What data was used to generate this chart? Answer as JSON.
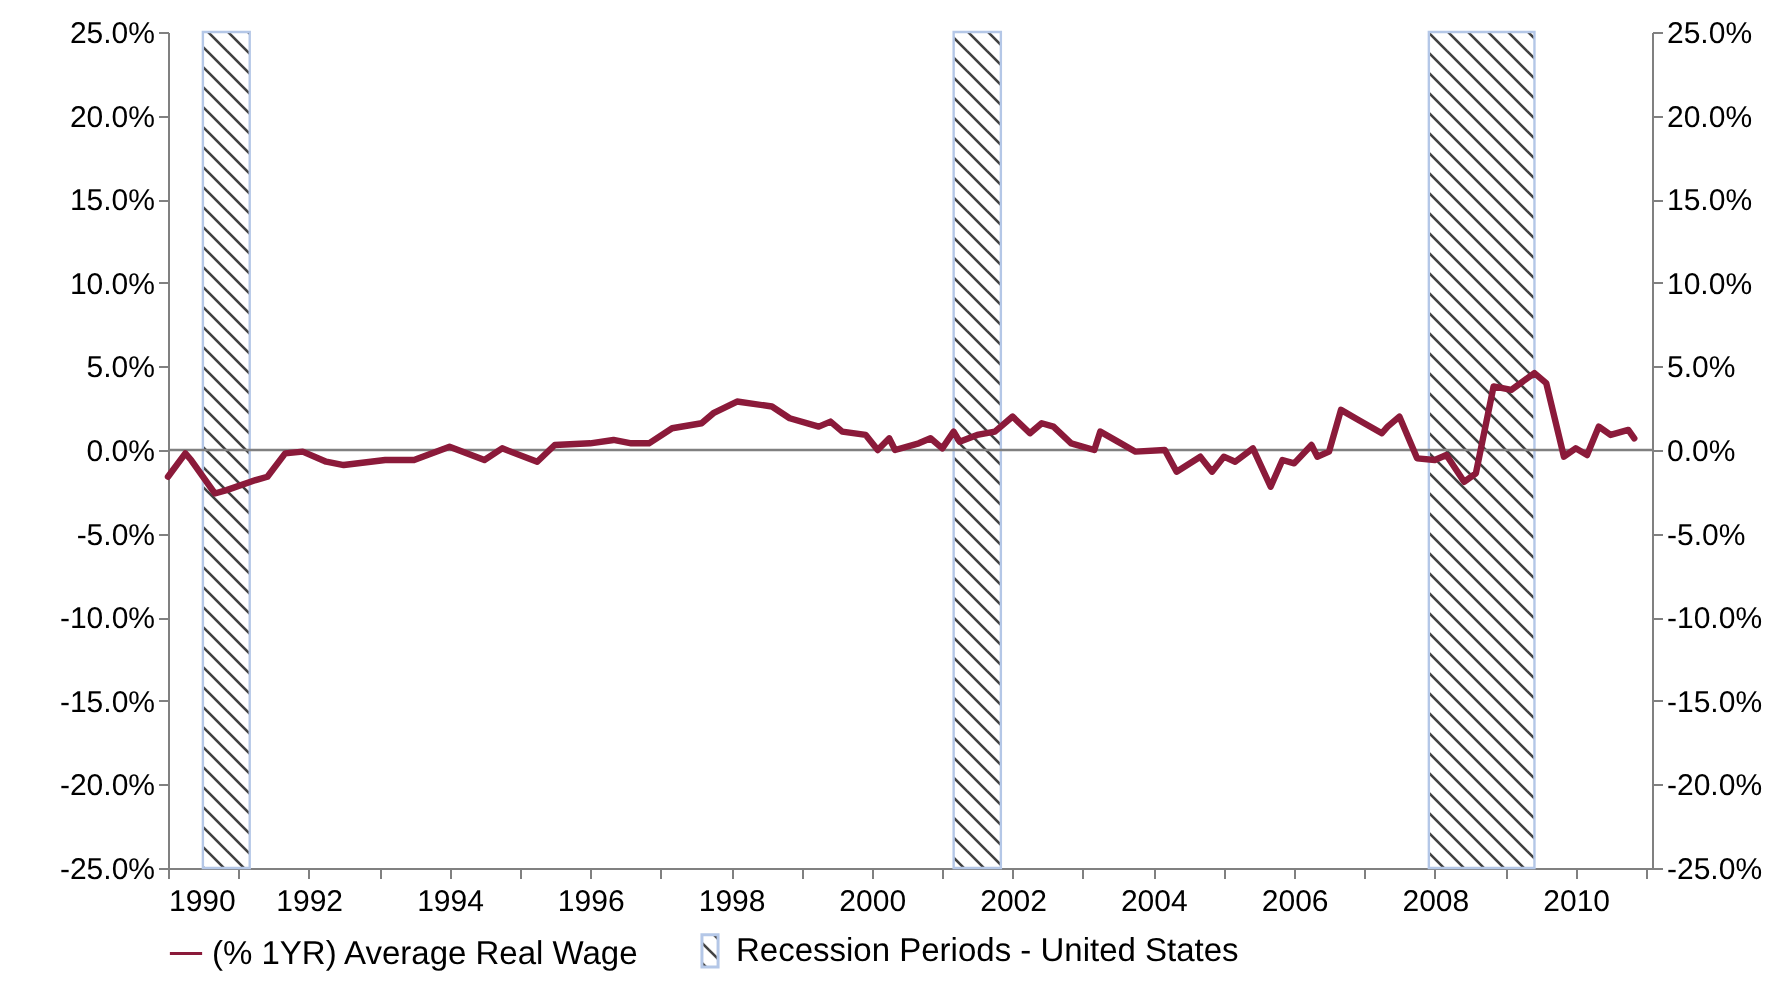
{
  "chart_data": {
    "type": "line",
    "x": [
      "1990-01",
      "1990-04",
      "1990-05",
      "1990-09",
      "1990-11",
      "1991-04",
      "1991-06",
      "1991-09",
      "1991-12",
      "1992-04",
      "1992-07",
      "1993-02",
      "1993-07",
      "1994-01",
      "1994-07",
      "1994-10",
      "1995-04",
      "1995-07",
      "1996-01",
      "1996-05",
      "1996-08",
      "1996-11",
      "1997-03",
      "1997-08",
      "1997-10",
      "1998-02",
      "1998-08",
      "1998-11",
      "1999-04",
      "1999-06",
      "1999-08",
      "1999-12",
      "2000-02",
      "2000-04",
      "2000-05",
      "2000-09",
      "2000-11",
      "2001-01",
      "2001-03",
      "2001-04",
      "2001-07",
      "2001-10",
      "2002-01",
      "2002-04",
      "2002-06",
      "2002-08",
      "2002-11",
      "2003-03",
      "2003-04",
      "2003-07",
      "2003-10",
      "2004-03",
      "2004-05",
      "2004-09",
      "2004-11",
      "2005-01",
      "2005-03",
      "2005-06",
      "2005-09",
      "2005-11",
      "2006-01",
      "2006-04",
      "2006-05",
      "2006-07",
      "2006-09",
      "2006-12",
      "2007-04",
      "2007-05",
      "2007-07",
      "2007-10",
      "2008-01",
      "2008-03",
      "2008-06",
      "2008-08",
      "2008-11",
      "2009-02",
      "2009-06",
      "2009-08",
      "2009-11",
      "2010-01",
      "2010-03",
      "2010-05",
      "2010-07",
      "2010-10",
      "2010-11"
    ],
    "series": [
      {
        "name": "(% 1YR) Average Real Wage",
        "color": "#8b1a3a",
        "values": [
          -1.6,
          -0.2,
          -0.6,
          -2.6,
          -2.4,
          -1.8,
          -1.6,
          -0.2,
          -0.1,
          -0.7,
          -0.9,
          -0.6,
          -0.6,
          0.2,
          -0.6,
          0.1,
          -0.7,
          0.3,
          0.4,
          0.6,
          0.4,
          0.4,
          1.3,
          1.6,
          2.2,
          2.9,
          2.6,
          1.9,
          1.4,
          1.7,
          1.1,
          0.9,
          0.0,
          0.7,
          0.0,
          0.4,
          0.7,
          0.1,
          1.1,
          0.5,
          0.9,
          1.1,
          2.0,
          1.0,
          1.6,
          1.4,
          0.4,
          0.0,
          1.1,
          0.5,
          -0.1,
          0.0,
          -1.3,
          -0.4,
          -1.3,
          -0.4,
          -0.7,
          0.1,
          -2.2,
          -0.6,
          -0.8,
          0.3,
          -0.4,
          -0.1,
          2.4,
          1.8,
          1.0,
          1.4,
          2.0,
          -0.5,
          -0.6,
          -0.3,
          -1.9,
          -1.4,
          3.8,
          3.6,
          4.6,
          4.0,
          -0.4,
          0.1,
          -0.3,
          1.4,
          0.9,
          1.2,
          0.7
        ]
      }
    ],
    "xlim": [
      "1990-01",
      "2011-02"
    ],
    "xticks": [
      {
        "value": "1990",
        "label": "1990"
      },
      {
        "value": "1991",
        "label": null
      },
      {
        "value": "1992",
        "label": "1992"
      },
      {
        "value": "1993",
        "label": null
      },
      {
        "value": "1994",
        "label": "1994"
      },
      {
        "value": "1995",
        "label": null
      },
      {
        "value": "1996",
        "label": "1996"
      },
      {
        "value": "1997",
        "label": null
      },
      {
        "value": "1998",
        "label": "1998"
      },
      {
        "value": "1999",
        "label": null
      },
      {
        "value": "2000",
        "label": "2000"
      },
      {
        "value": "2001",
        "label": null
      },
      {
        "value": "2002",
        "label": "2002"
      },
      {
        "value": "2003",
        "label": null
      },
      {
        "value": "2004",
        "label": "2004"
      },
      {
        "value": "2005",
        "label": null
      },
      {
        "value": "2006",
        "label": "2006"
      },
      {
        "value": "2007",
        "label": null
      },
      {
        "value": "2008",
        "label": "2008"
      },
      {
        "value": "2009",
        "label": null
      },
      {
        "value": "2010",
        "label": "2010"
      },
      {
        "value": "2011",
        "label": null
      }
    ],
    "ylim": [
      -25,
      25
    ],
    "yticks": [
      {
        "value": -25,
        "label": "-25.0%"
      },
      {
        "value": -20,
        "label": "-20.0%"
      },
      {
        "value": -15,
        "label": "-15.0%"
      },
      {
        "value": -10,
        "label": "-10.0%"
      },
      {
        "value": -5,
        "label": "-5.0%"
      },
      {
        "value": 0,
        "label": "0.0%"
      },
      {
        "value": 5,
        "label": "5.0%"
      },
      {
        "value": 10,
        "label": "10.0%"
      },
      {
        "value": 15,
        "label": "15.0%"
      },
      {
        "value": 20,
        "label": "20.0%"
      },
      {
        "value": 25,
        "label": "25.0%"
      }
    ],
    "y2lim": [
      -25,
      25
    ],
    "y2ticks": [
      {
        "value": -25,
        "label": "-25.0%"
      },
      {
        "value": -20,
        "label": "-20.0%"
      },
      {
        "value": -15,
        "label": "-15.0%"
      },
      {
        "value": -10,
        "label": "-10.0%"
      },
      {
        "value": -5,
        "label": "-5.0%"
      },
      {
        "value": 0,
        "label": "0.0%"
      },
      {
        "value": 5,
        "label": "5.0%"
      },
      {
        "value": 10,
        "label": "10.0%"
      },
      {
        "value": 15,
        "label": "15.0%"
      },
      {
        "value": 20,
        "label": "20.0%"
      },
      {
        "value": 25,
        "label": "25.0%"
      }
    ],
    "bands": [
      {
        "axis": "x",
        "from": "1990-07",
        "to": "1991-03",
        "label": "Recession Periods - United States",
        "color": "#b4c7e7"
      },
      {
        "axis": "x",
        "from": "2001-03",
        "to": "2001-11",
        "color": "#b4c7e7"
      },
      {
        "axis": "x",
        "from": "2007-12",
        "to": "2009-06",
        "color": "#b4c7e7"
      }
    ],
    "ref_lines": [
      {
        "axis": "y",
        "value": 0,
        "color": "#808080"
      }
    ],
    "grid": false,
    "legend": "bottom",
    "line_style": "solid"
  }
}
